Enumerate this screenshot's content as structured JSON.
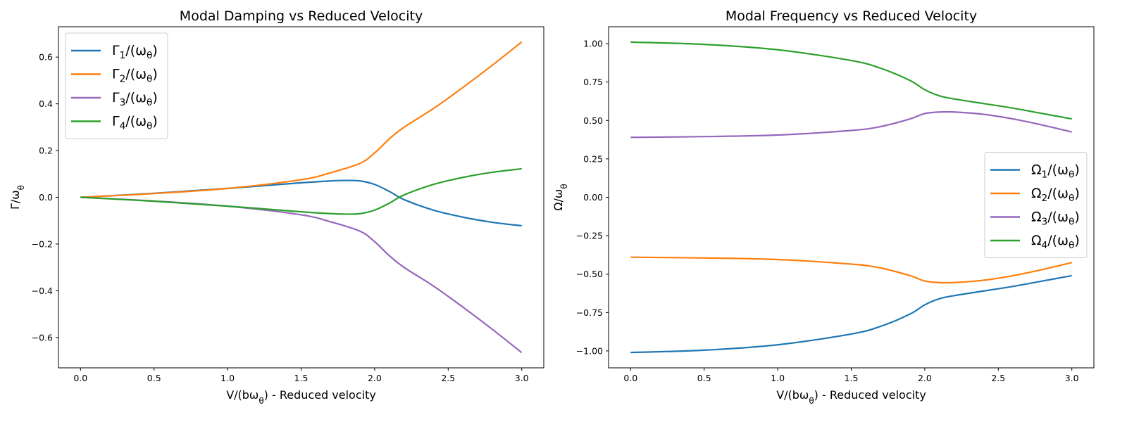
{
  "colors": {
    "blue": "#1f77b4",
    "orange": "#ff7f0e",
    "purple": "#9467bd",
    "green": "#2ca02c"
  },
  "chart_data": [
    {
      "type": "line",
      "title": "Modal Damping vs Reduced Velocity",
      "xlabel": "V/(bω_θ) - Reduced velocity",
      "ylabel": "Γ/ω_θ",
      "xlim": [
        -0.15,
        3.15
      ],
      "ylim": [
        -0.73,
        0.73
      ],
      "xticks": [
        "0.0",
        "0.5",
        "1.0",
        "1.5",
        "2.0",
        "2.5",
        "3.0"
      ],
      "yticks": [
        "−0.6",
        "−0.4",
        "−0.2",
        "0.0",
        "0.2",
        "0.4",
        "0.6"
      ],
      "grid": false,
      "legend_position": "upper-left",
      "series": [
        {
          "name": "Γ1/(ωθ)",
          "color": "#1f77b4",
          "x": [
            0,
            0.5,
            1.0,
            1.5,
            1.7,
            1.8,
            1.9,
            2.0,
            2.1,
            2.2,
            2.4,
            2.6,
            2.8,
            3.0
          ],
          "y": [
            0,
            0.017,
            0.038,
            0.062,
            0.07,
            0.072,
            0.07,
            0.055,
            0.025,
            -0.01,
            -0.055,
            -0.085,
            -0.107,
            -0.122
          ]
        },
        {
          "name": "Γ2/(ωθ)",
          "color": "#ff7f0e",
          "x": [
            0,
            0.5,
            1.0,
            1.5,
            1.7,
            1.9,
            2.0,
            2.1,
            2.2,
            2.4,
            2.6,
            2.8,
            3.0
          ],
          "y": [
            0,
            0.016,
            0.038,
            0.075,
            0.105,
            0.145,
            0.19,
            0.25,
            0.3,
            0.38,
            0.47,
            0.565,
            0.665
          ]
        },
        {
          "name": "Γ3/(ωθ)",
          "color": "#9467bd",
          "x": [
            0,
            0.5,
            1.0,
            1.5,
            1.7,
            1.9,
            2.0,
            2.1,
            2.2,
            2.4,
            2.6,
            2.8,
            3.0
          ],
          "y": [
            0,
            -0.016,
            -0.038,
            -0.075,
            -0.105,
            -0.145,
            -0.19,
            -0.25,
            -0.3,
            -0.38,
            -0.47,
            -0.565,
            -0.665
          ]
        },
        {
          "name": "Γ4/(ωθ)",
          "color": "#2ca02c",
          "x": [
            0,
            0.5,
            1.0,
            1.5,
            1.7,
            1.8,
            1.9,
            2.0,
            2.1,
            2.2,
            2.4,
            2.6,
            2.8,
            3.0
          ],
          "y": [
            0,
            -0.017,
            -0.038,
            -0.062,
            -0.07,
            -0.072,
            -0.07,
            -0.055,
            -0.025,
            0.01,
            0.055,
            0.085,
            0.107,
            0.122
          ]
        }
      ]
    },
    {
      "type": "line",
      "title": "Modal Frequency vs Reduced Velocity",
      "xlabel": "V/(bω_θ) - Reduced velocity",
      "ylabel": "Ω/ω_θ",
      "xlim": [
        -0.15,
        3.15
      ],
      "ylim": [
        -1.11,
        1.11
      ],
      "xticks": [
        "0.0",
        "0.5",
        "1.0",
        "1.5",
        "2.0",
        "2.5",
        "3.0"
      ],
      "yticks": [
        "−1.00",
        "−0.75",
        "−0.50",
        "−0.25",
        "0.00",
        "0.25",
        "0.50",
        "0.75",
        "1.00"
      ],
      "grid": false,
      "legend_position": "center-right",
      "series": [
        {
          "name": "Ω1/(ωθ)",
          "color": "#1f77b4",
          "x": [
            0,
            0.5,
            1.0,
            1.5,
            1.7,
            1.9,
            2.0,
            2.1,
            2.2,
            2.4,
            2.6,
            2.8,
            3.0
          ],
          "y": [
            -1.01,
            -0.995,
            -0.96,
            -0.89,
            -0.84,
            -0.76,
            -0.7,
            -0.66,
            -0.64,
            -0.61,
            -0.58,
            -0.545,
            -0.51
          ]
        },
        {
          "name": "Ω2/(ωθ)",
          "color": "#ff7f0e",
          "x": [
            0,
            0.5,
            1.0,
            1.5,
            1.7,
            1.9,
            2.0,
            2.1,
            2.2,
            2.4,
            2.6,
            2.8,
            3.0
          ],
          "y": [
            -0.39,
            -0.395,
            -0.405,
            -0.435,
            -0.46,
            -0.51,
            -0.545,
            -0.555,
            -0.555,
            -0.54,
            -0.51,
            -0.47,
            -0.425
          ]
        },
        {
          "name": "Ω3/(ωθ)",
          "color": "#9467bd",
          "x": [
            0,
            0.5,
            1.0,
            1.5,
            1.7,
            1.9,
            2.0,
            2.1,
            2.2,
            2.4,
            2.6,
            2.8,
            3.0
          ],
          "y": [
            0.39,
            0.395,
            0.405,
            0.435,
            0.46,
            0.51,
            0.545,
            0.555,
            0.555,
            0.54,
            0.51,
            0.47,
            0.425
          ]
        },
        {
          "name": "Ω4/(ωθ)",
          "color": "#2ca02c",
          "x": [
            0,
            0.5,
            1.0,
            1.5,
            1.7,
            1.9,
            2.0,
            2.1,
            2.2,
            2.4,
            2.6,
            2.8,
            3.0
          ],
          "y": [
            1.01,
            0.995,
            0.96,
            0.89,
            0.84,
            0.76,
            0.7,
            0.66,
            0.64,
            0.61,
            0.58,
            0.545,
            0.51
          ]
        }
      ]
    }
  ]
}
